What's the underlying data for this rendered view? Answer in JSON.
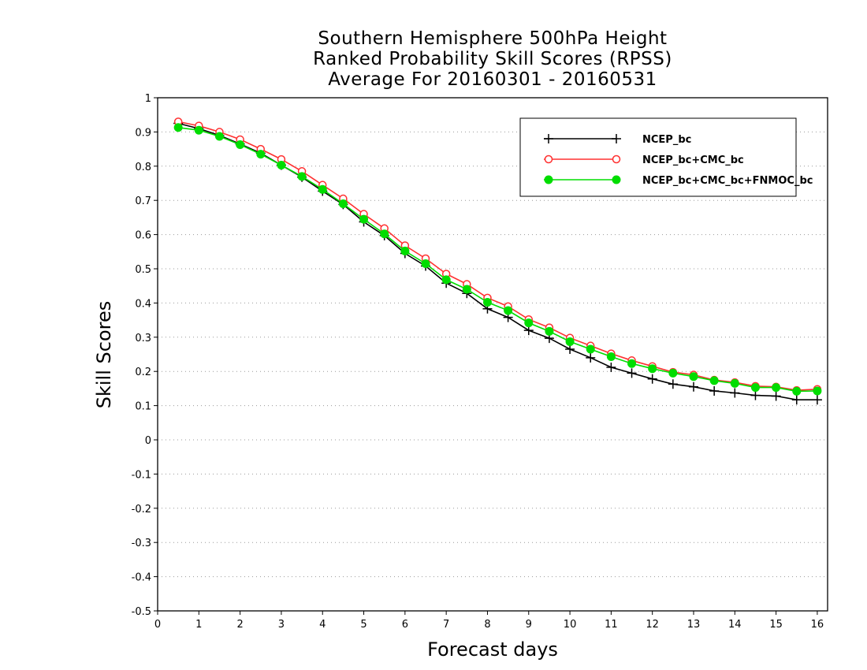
{
  "chart_data": {
    "type": "line",
    "title": [
      "Southern Hemisphere 500hPa Height",
      "Ranked Probability Skill Scores (RPSS)",
      "Average For 20160301 - 20160531"
    ],
    "xlabel": "Forecast days",
    "ylabel": "Skill Scores",
    "xlim": [
      0,
      16.25
    ],
    "ylim": [
      -0.5,
      1
    ],
    "xticks": [
      0,
      1,
      2,
      3,
      4,
      5,
      6,
      7,
      8,
      9,
      10,
      11,
      12,
      13,
      14,
      15,
      16
    ],
    "yticks": [
      -0.5,
      -0.4,
      -0.3,
      -0.2,
      -0.1,
      0,
      0.1,
      0.2,
      0.3,
      0.4,
      0.5,
      0.6,
      0.7,
      0.8,
      0.9,
      1
    ],
    "ytick_labels": [
      "-0.5",
      "-0.4",
      "-0.3",
      "-0.2",
      "-0.1",
      "0",
      "0.1",
      "0.2",
      "0.3",
      "0.4",
      "0.5",
      "0.6",
      "0.7",
      "0.8",
      "0.9",
      "1"
    ],
    "grid": "horizontal dotted",
    "legend_position": "top-right",
    "x": [
      0.5,
      1,
      1.5,
      2,
      2.5,
      3,
      3.5,
      4,
      4.5,
      5,
      5.5,
      6,
      6.5,
      7,
      7.5,
      8,
      8.5,
      9,
      9.5,
      10,
      10.5,
      11,
      11.5,
      12,
      12.5,
      13,
      13.5,
      14,
      14.5,
      15,
      15.5,
      16
    ],
    "series": [
      {
        "name": "NCEP_bc",
        "color": "#000000",
        "marker": "plus",
        "values": [
          0.925,
          0.91,
          0.89,
          0.865,
          0.838,
          0.803,
          0.768,
          0.727,
          0.688,
          0.637,
          0.597,
          0.545,
          0.508,
          0.458,
          0.428,
          0.383,
          0.358,
          0.32,
          0.297,
          0.265,
          0.24,
          0.212,
          0.195,
          0.178,
          0.163,
          0.155,
          0.143,
          0.137,
          0.13,
          0.128,
          0.117,
          0.117
        ]
      },
      {
        "name": "NCEP_bc+CMC_bc",
        "color": "#ff3030",
        "marker": "open-circle",
        "values": [
          0.93,
          0.918,
          0.9,
          0.878,
          0.85,
          0.82,
          0.785,
          0.745,
          0.705,
          0.66,
          0.618,
          0.568,
          0.53,
          0.485,
          0.455,
          0.415,
          0.39,
          0.352,
          0.328,
          0.298,
          0.275,
          0.252,
          0.232,
          0.215,
          0.198,
          0.19,
          0.175,
          0.168,
          0.157,
          0.155,
          0.145,
          0.148
        ]
      },
      {
        "name": "NCEP_bc+CMC_bc+FNMOC_bc",
        "color": "#00dd00",
        "marker": "filled-circle",
        "values": [
          0.913,
          0.905,
          0.887,
          0.863,
          0.835,
          0.803,
          0.77,
          0.732,
          0.69,
          0.645,
          0.602,
          0.552,
          0.515,
          0.468,
          0.44,
          0.402,
          0.378,
          0.342,
          0.317,
          0.287,
          0.265,
          0.243,
          0.223,
          0.208,
          0.195,
          0.185,
          0.173,
          0.165,
          0.153,
          0.153,
          0.142,
          0.143
        ]
      }
    ]
  }
}
